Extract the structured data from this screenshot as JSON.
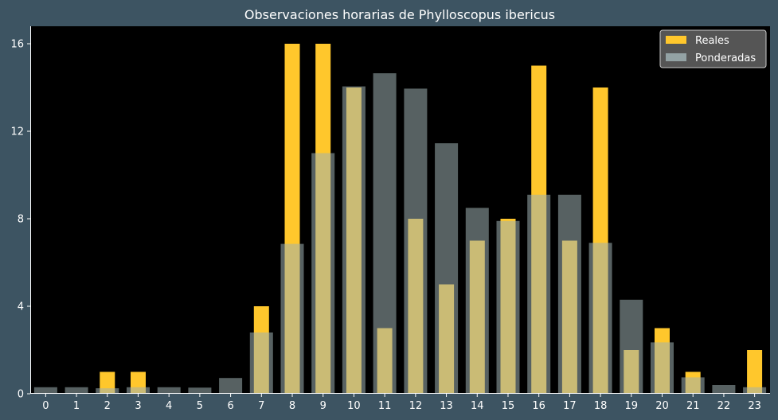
{
  "chart_data": {
    "type": "bar",
    "title": "Observaciones horarias de Phylloscopus ibericus",
    "xlabel": "",
    "ylabel": "",
    "categories": [
      "0",
      "1",
      "2",
      "3",
      "4",
      "5",
      "6",
      "7",
      "8",
      "9",
      "10",
      "11",
      "12",
      "13",
      "14",
      "15",
      "16",
      "17",
      "18",
      "19",
      "20",
      "21",
      "22",
      "23"
    ],
    "ylim": [
      0,
      16.8
    ],
    "yticks": [
      0,
      4,
      8,
      12,
      16
    ],
    "grid": false,
    "legend_position": "top-right",
    "series": [
      {
        "name": "Reales",
        "color": "#ffc72c",
        "values": [
          0,
          0,
          1,
          1,
          0,
          0,
          0,
          4,
          16,
          16,
          14,
          3,
          8,
          5,
          7,
          8,
          15,
          7,
          14,
          2,
          3,
          1,
          0,
          2
        ]
      },
      {
        "name": "Ponderadas",
        "color": "#9fb0b3",
        "values": [
          0.3,
          0.3,
          0.25,
          0.3,
          0.3,
          0.28,
          0.72,
          2.8,
          6.85,
          11,
          14.05,
          14.65,
          13.95,
          11.45,
          8.5,
          7.9,
          9.1,
          9.1,
          6.9,
          4.3,
          2.35,
          0.75,
          0.4,
          0.3
        ]
      }
    ]
  },
  "colors": {
    "background": "#3d5462",
    "plot_background": "#000000",
    "axis": "#ffffff",
    "legend_background": "#555555"
  }
}
